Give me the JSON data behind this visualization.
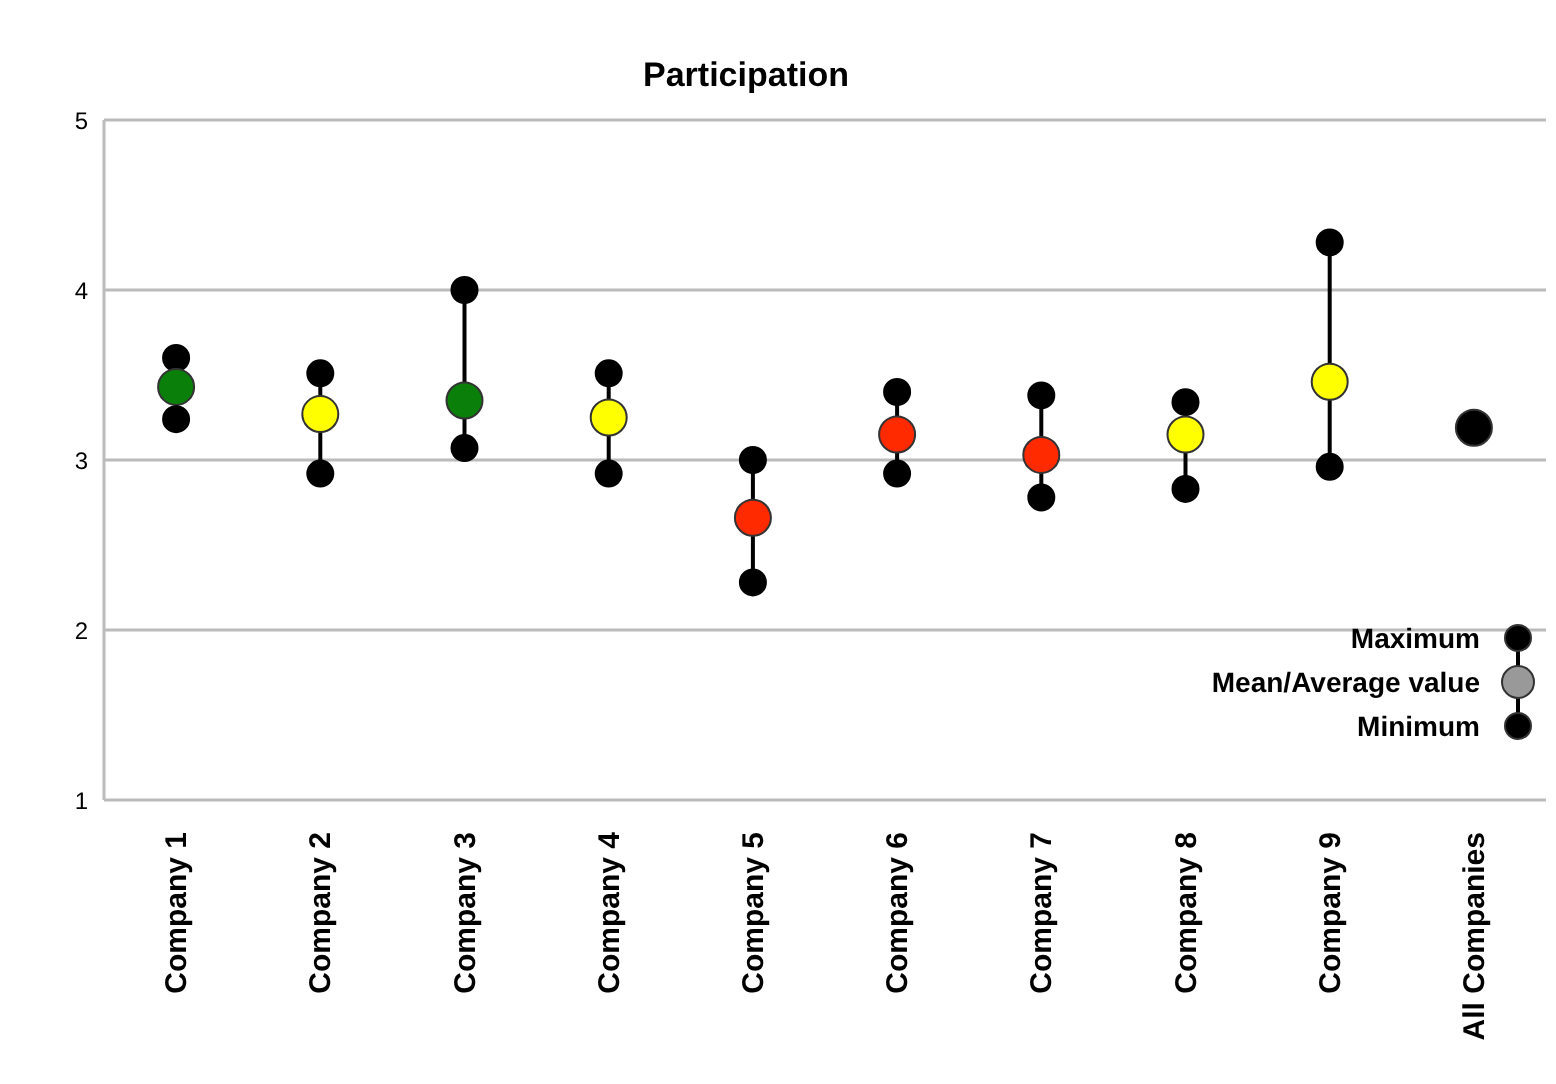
{
  "chart_data": {
    "type": "scatter",
    "title": "Participation",
    "categories": [
      "Company 1",
      "Company 2",
      "Company 3",
      "Company 4",
      "Company 5",
      "Company 6",
      "Company 7",
      "Company 8",
      "Company 9",
      "All Companies"
    ],
    "series": [
      {
        "name": "Maximum",
        "color": "#000000",
        "values": [
          3.6,
          3.51,
          4.0,
          3.51,
          3.0,
          3.4,
          3.38,
          3.34,
          4.28,
          null
        ]
      },
      {
        "name": "Mean/Average value",
        "color": "#999999",
        "colors": [
          "#0a800a",
          "#ffff00",
          "#0a800a",
          "#ffff00",
          "#ff2a00",
          "#ff2a00",
          "#ff2a00",
          "#ffff00",
          "#ffff00",
          "#000000"
        ],
        "values": [
          3.43,
          3.27,
          3.35,
          3.25,
          2.66,
          3.15,
          3.03,
          3.15,
          3.46,
          3.19
        ]
      },
      {
        "name": "Minimum",
        "color": "#000000",
        "values": [
          3.24,
          2.92,
          3.07,
          2.92,
          2.28,
          2.92,
          2.78,
          2.83,
          2.96,
          null
        ]
      }
    ],
    "ylim": [
      1,
      5
    ],
    "yticks": [
      1,
      2,
      3,
      4,
      5
    ],
    "grid": "y",
    "legend": "bottom right",
    "marker": "circle"
  }
}
